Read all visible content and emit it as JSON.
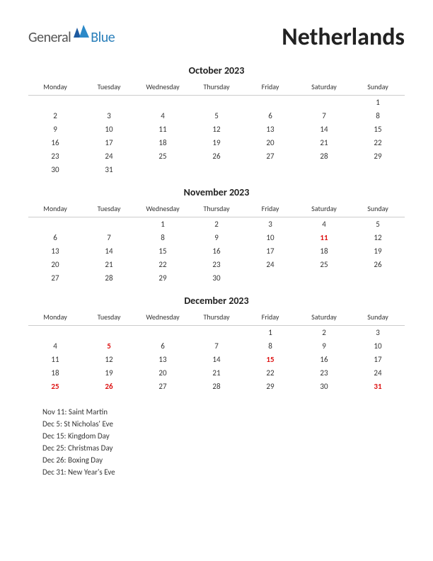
{
  "logo": {
    "word1": "General",
    "word2": "Blue"
  },
  "country": "Netherlands",
  "day_headers": [
    "Monday",
    "Tuesday",
    "Wednesday",
    "Thursday",
    "Friday",
    "Saturday",
    "Sunday"
  ],
  "colors": {
    "holiday": "#d11",
    "text": "#333",
    "logo_gray": "#555",
    "logo_blue": "#2a7fba",
    "tri1": "#1e5aa0",
    "tri2": "#2b89c8"
  },
  "months": [
    {
      "title": "October 2023",
      "weeks": [
        [
          "",
          "",
          "",
          "",
          "",
          "",
          "1"
        ],
        [
          "2",
          "3",
          "4",
          "5",
          "6",
          "7",
          "8"
        ],
        [
          "9",
          "10",
          "11",
          "12",
          "13",
          "14",
          "15"
        ],
        [
          "16",
          "17",
          "18",
          "19",
          "20",
          "21",
          "22"
        ],
        [
          "23",
          "24",
          "25",
          "26",
          "27",
          "28",
          "29"
        ],
        [
          "30",
          "31",
          "",
          "",
          "",
          "",
          ""
        ]
      ],
      "holidays": []
    },
    {
      "title": "November 2023",
      "weeks": [
        [
          "",
          "",
          "1",
          "2",
          "3",
          "4",
          "5"
        ],
        [
          "6",
          "7",
          "8",
          "9",
          "10",
          "11",
          "12"
        ],
        [
          "13",
          "14",
          "15",
          "16",
          "17",
          "18",
          "19"
        ],
        [
          "20",
          "21",
          "22",
          "23",
          "24",
          "25",
          "26"
        ],
        [
          "27",
          "28",
          "29",
          "30",
          "",
          "",
          ""
        ]
      ],
      "holidays": [
        "11"
      ]
    },
    {
      "title": "December 2023",
      "weeks": [
        [
          "",
          "",
          "",
          "",
          "1",
          "2",
          "3"
        ],
        [
          "4",
          "5",
          "6",
          "7",
          "8",
          "9",
          "10"
        ],
        [
          "11",
          "12",
          "13",
          "14",
          "15",
          "16",
          "17"
        ],
        [
          "18",
          "19",
          "20",
          "21",
          "22",
          "23",
          "24"
        ],
        [
          "25",
          "26",
          "27",
          "28",
          "29",
          "30",
          "31"
        ]
      ],
      "holidays": [
        "5",
        "15",
        "25",
        "26",
        "31"
      ]
    }
  ],
  "holiday_list": [
    "Nov 11: Saint Martin",
    "Dec 5: St Nicholas' Eve",
    "Dec 15: Kingdom Day",
    "Dec 25: Christmas Day",
    "Dec 26: Boxing Day",
    "Dec 31: New Year's Eve"
  ]
}
